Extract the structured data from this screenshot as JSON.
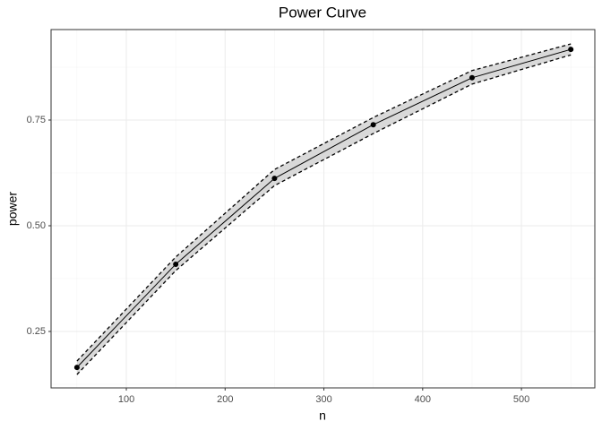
{
  "chart_data": {
    "type": "line",
    "title": "Power Curve",
    "x_label": "n",
    "y_label": "power",
    "x": [
      50,
      150,
      250,
      350,
      450,
      550
    ],
    "values": [
      0.165,
      0.409,
      0.612,
      0.739,
      0.85,
      0.917
    ],
    "lower": [
      0.148,
      0.394,
      0.595,
      0.718,
      0.835,
      0.904
    ],
    "upper": [
      0.18,
      0.426,
      0.633,
      0.756,
      0.867,
      0.93
    ],
    "color": "#000000",
    "band_color": "#d9d9d9",
    "xlim": [
      23.8,
      574.3
    ],
    "xticks": [
      100,
      200,
      300,
      400,
      500
    ],
    "ylim": [
      0.1165,
      0.964
    ],
    "yticks": [
      0.25,
      {
        "value": 0.5,
        "label": "0.50"
      },
      0.75
    ],
    "grid": true
  }
}
